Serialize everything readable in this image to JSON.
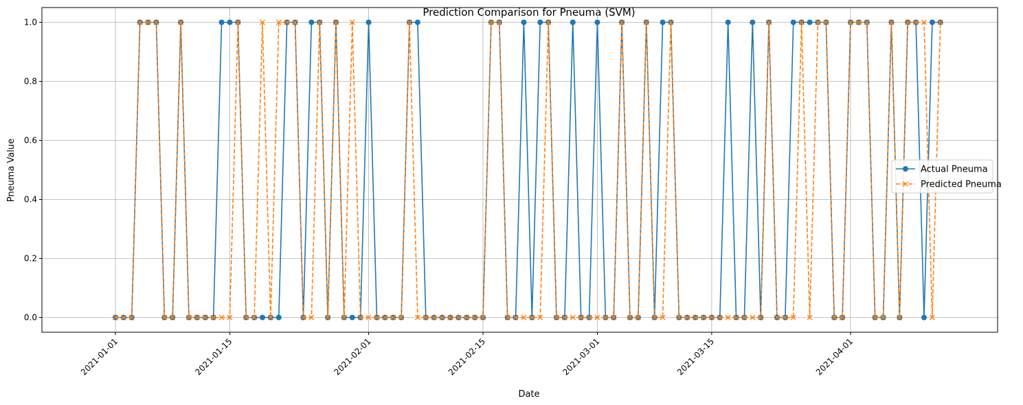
{
  "chart_data": {
    "type": "line",
    "title": "Prediction Comparison for Pneuma (SVM)",
    "xlabel": "Date",
    "ylabel": "Pneuma Value",
    "x_start": "2021-01-01",
    "x_step_days": 1,
    "xlim": [
      "2020-12-23",
      "2021-04-19"
    ],
    "ylim": [
      -0.05,
      1.05
    ],
    "x_ticks": [
      "2021-01-01",
      "2021-01-15",
      "2021-02-01",
      "2021-02-15",
      "2021-03-01",
      "2021-03-15",
      "2021-04-01"
    ],
    "y_ticks": [
      "0.0",
      "0.2",
      "0.4",
      "0.6",
      "0.8",
      "1.0"
    ],
    "grid": true,
    "legend_position": "center-right",
    "series": [
      {
        "name": "Actual Pneuma",
        "color": "#1f77b4",
        "marker": "circle",
        "linestyle": "solid",
        "values": [
          0,
          0,
          0,
          1,
          1,
          1,
          0,
          0,
          1,
          0,
          0,
          0,
          0,
          1,
          1,
          1,
          0,
          0,
          0,
          0,
          0,
          1,
          1,
          0,
          1,
          1,
          0,
          1,
          0,
          0,
          0,
          1,
          0,
          0,
          0,
          0,
          1,
          1,
          0,
          0,
          0,
          0,
          0,
          0,
          0,
          0,
          1,
          1,
          0,
          0,
          1,
          0,
          1,
          1,
          0,
          0,
          1,
          0,
          0,
          1,
          0,
          0,
          1,
          0,
          0,
          1,
          0,
          1,
          1,
          0,
          0,
          0,
          0,
          0,
          0,
          1,
          0,
          0,
          1,
          0,
          1,
          0,
          0,
          1,
          1,
          1,
          1,
          1,
          0,
          0,
          1,
          1,
          1,
          0,
          0,
          1,
          0,
          1,
          1,
          0,
          1,
          1
        ]
      },
      {
        "name": "Predicted Pneuma",
        "color": "#ff7f0e",
        "marker": "x",
        "linestyle": "dashed",
        "values": [
          0,
          0,
          0,
          1,
          1,
          1,
          0,
          0,
          1,
          0,
          0,
          0,
          0,
          0,
          0,
          1,
          0,
          0,
          1,
          0,
          1,
          1,
          1,
          0,
          0,
          1,
          0,
          1,
          0,
          1,
          0,
          0,
          0,
          0,
          0,
          0,
          1,
          0,
          0,
          0,
          0,
          0,
          0,
          0,
          0,
          0,
          1,
          1,
          0,
          0,
          0,
          0,
          0,
          1,
          0,
          0,
          0,
          0,
          0,
          0,
          0,
          0,
          1,
          0,
          0,
          1,
          0,
          0,
          1,
          0,
          0,
          0,
          0,
          0,
          0,
          0,
          0,
          0,
          0,
          0,
          1,
          0,
          0,
          0,
          1,
          0,
          1,
          1,
          0,
          0,
          1,
          1,
          1,
          0,
          0,
          1,
          0,
          1,
          1,
          1,
          0,
          1
        ]
      }
    ]
  }
}
